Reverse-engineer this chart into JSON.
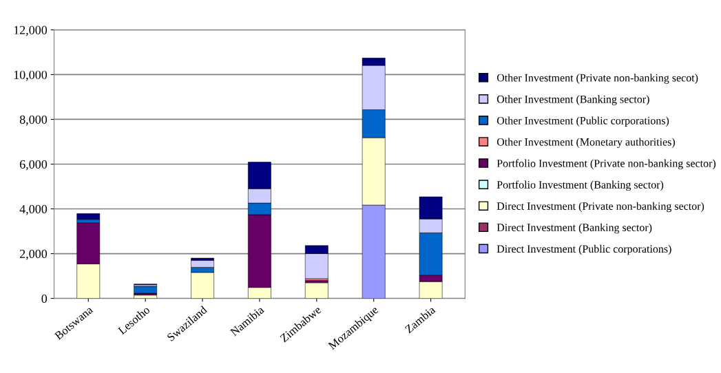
{
  "chart_data": {
    "type": "bar",
    "stacked": true,
    "categories": [
      "Botswana",
      "Lesotho",
      "Swaziland",
      "Namibia",
      "Zimbabwe",
      "Mozambique",
      "Zambia"
    ],
    "series": [
      {
        "name": "Direct Investment (Public corporations)",
        "color": "#9999ff",
        "values": [
          0,
          0,
          0,
          0,
          0,
          4170,
          0
        ]
      },
      {
        "name": "Direct Investment (Banking sector)",
        "color": "#993366",
        "values": [
          0,
          0,
          0,
          0,
          0,
          0,
          0
        ]
      },
      {
        "name": "Direct Investment (Private non-banking sector)",
        "color": "#ffffcc",
        "values": [
          1540,
          150,
          1160,
          490,
          700,
          3010,
          750
        ]
      },
      {
        "name": "Portfolio Investment (Banking sector)",
        "color": "#ccffff",
        "values": [
          0,
          0,
          0,
          0,
          0,
          0,
          0
        ]
      },
      {
        "name": "Portfolio Investment (Private non-banking sector)",
        "color": "#660066",
        "values": [
          1840,
          80,
          0,
          3250,
          100,
          0,
          290
        ]
      },
      {
        "name": "Other Investment (Monetary authorities)",
        "color": "#ff8080",
        "values": [
          0,
          0,
          0,
          0,
          80,
          0,
          0
        ]
      },
      {
        "name": "Other Investment (Public corporations)",
        "color": "#0066cc",
        "values": [
          150,
          310,
          230,
          520,
          0,
          1250,
          1890
        ]
      },
      {
        "name": "Other Investment (Banking sector)",
        "color": "#ccccff",
        "values": [
          0,
          70,
          310,
          640,
          1120,
          1980,
          620
        ]
      },
      {
        "name": "Other Investment (Private non-banking secot)",
        "color": "#000080",
        "values": [
          260,
          30,
          100,
          1190,
          360,
          330,
          990
        ]
      }
    ],
    "ylim": [
      0,
      12000
    ],
    "yticks": [
      0,
      {
        "value": 2000,
        "label": "2,000"
      },
      {
        "value": 4000,
        "label": "4,000"
      },
      {
        "value": 6000,
        "label": "6,000"
      },
      {
        "value": 8000,
        "label": "8,000"
      },
      {
        "value": 10000,
        "label": "10,000"
      },
      {
        "value": 12000,
        "label": "12,000"
      }
    ],
    "grid": "y",
    "legend": "right"
  }
}
